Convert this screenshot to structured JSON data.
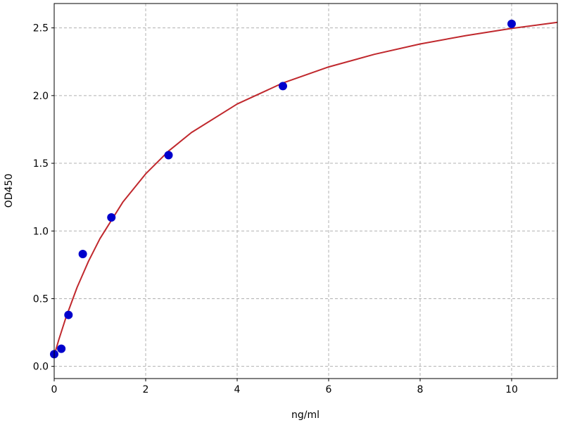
{
  "chart_data": {
    "type": "scatter",
    "title": "",
    "xlabel": "ng/ml",
    "ylabel": "OD450",
    "xlim": [
      0,
      11
    ],
    "ylim": [
      -0.09,
      2.68
    ],
    "xticks": [
      0,
      2,
      4,
      6,
      8,
      10
    ],
    "xtick_labels": [
      "0",
      "2",
      "4",
      "6",
      "8",
      "10"
    ],
    "yticks": [
      0,
      0.5,
      1,
      1.5,
      2,
      2.5
    ],
    "ytick_labels": [
      "0.0",
      "0.5",
      "1.0",
      "1.5",
      "2.0",
      "2.5"
    ],
    "grid": true,
    "points": {
      "x": [
        0,
        0.156,
        0.3125,
        0.625,
        1.25,
        2.5,
        5,
        10
      ],
      "y": [
        0.09,
        0.13,
        0.38,
        0.83,
        1.1,
        1.56,
        2.07,
        2.53
      ],
      "color": "#0000cc"
    },
    "fit_curve": {
      "x": [
        0,
        0.1,
        0.25,
        0.5,
        0.75,
        1,
        1.5,
        2,
        2.5,
        3,
        4,
        5,
        6,
        7,
        8,
        9,
        10,
        11
      ],
      "y": [
        0.08,
        0.196,
        0.355,
        0.583,
        0.777,
        0.943,
        1.213,
        1.422,
        1.59,
        1.727,
        1.938,
        2.093,
        2.212,
        2.305,
        2.381,
        2.443,
        2.496,
        2.541
      ],
      "color": "#c0282d"
    }
  }
}
